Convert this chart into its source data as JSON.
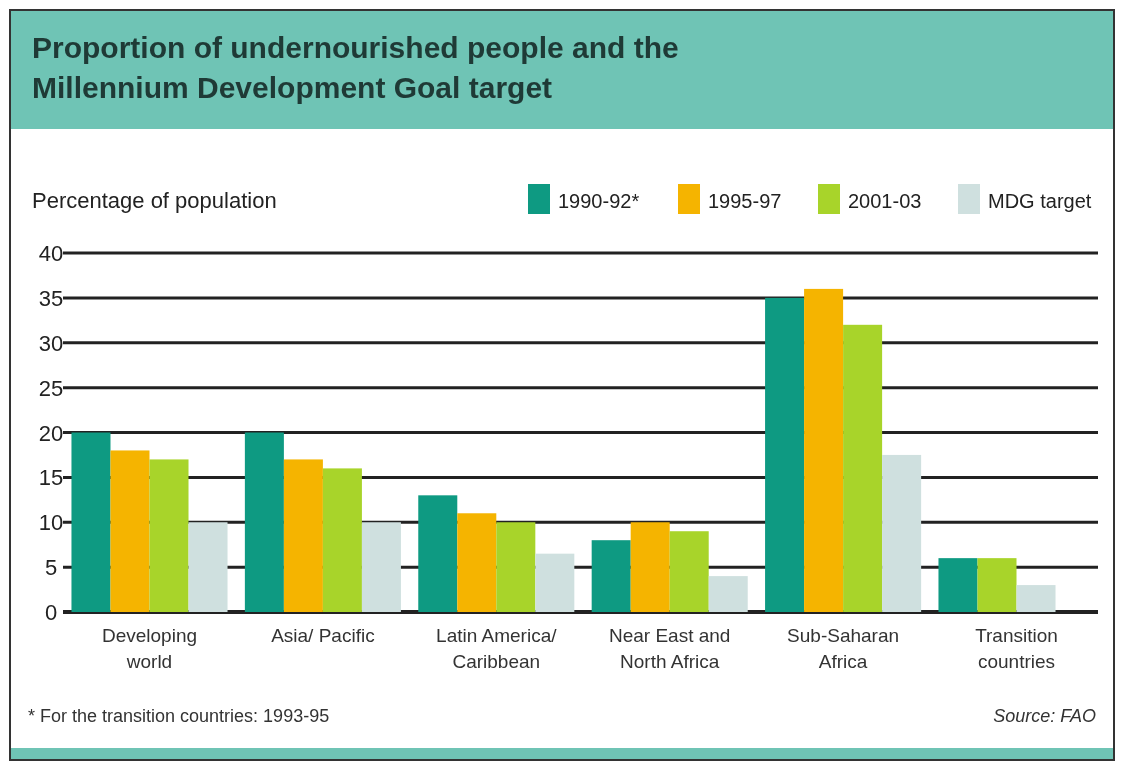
{
  "chart_data": {
    "type": "bar",
    "title": "Proportion of undernourished people and the Millennium Development Goal target",
    "ylabel": "Percentage of population",
    "categories": [
      "Developing world",
      "Asia/ Pacific",
      "Latin America/ Caribbean",
      "Near East and North Africa",
      "Sub-Saharan Africa",
      "Transition countries"
    ],
    "series": [
      {
        "name": "1990-92*",
        "color": "#0e9a82",
        "values": [
          20,
          20,
          13,
          8,
          35,
          6
        ]
      },
      {
        "name": "1995-97",
        "color": "#f5b400",
        "values": [
          18,
          17,
          11,
          10,
          36,
          null
        ]
      },
      {
        "name": "2001-03",
        "color": "#a8d42a",
        "values": [
          17,
          16,
          10,
          9,
          32,
          6
        ]
      },
      {
        "name": "MDG target",
        "color": "#cfe0df",
        "values": [
          10,
          10,
          6.5,
          4,
          17.5,
          3
        ]
      }
    ],
    "ylim": [
      0,
      40
    ],
    "yticks": [
      0,
      5,
      10,
      15,
      20,
      25,
      30,
      35,
      40
    ],
    "grid": "y",
    "legend": "top right",
    "annotations": [
      "* For the transition countries: 1993-95",
      "Source: FAO"
    ]
  }
}
